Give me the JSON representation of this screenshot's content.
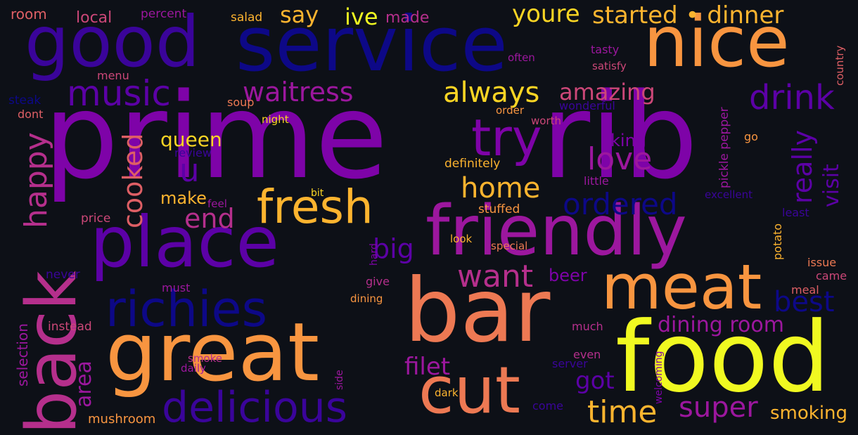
{
  "palette": [
    "#0d0887",
    "#3a049a",
    "#5c01a6",
    "#7e03a8",
    "#9c179e",
    "#b52f8c",
    "#cc4778",
    "#de5f65",
    "#ed7953",
    "#f89540",
    "#fdb42f",
    "#fbd524",
    "#f0f921"
  ],
  "background": "#0d1017",
  "words": [
    {
      "text": "prime"
    },
    {
      "text": "rib"
    },
    {
      "text": "food"
    },
    {
      "text": "bar"
    },
    {
      "text": "service"
    },
    {
      "text": "good"
    },
    {
      "text": "nice"
    },
    {
      "text": "great"
    },
    {
      "text": "place"
    },
    {
      "text": "friendly"
    },
    {
      "text": "back"
    },
    {
      "text": "meat"
    },
    {
      "text": "cut"
    },
    {
      "text": "richies"
    },
    {
      "text": "delicious"
    },
    {
      "text": "fresh"
    },
    {
      "text": "try"
    },
    {
      "text": "music"
    },
    {
      "text": "waitress"
    },
    {
      "text": "always"
    },
    {
      "text": "drink"
    },
    {
      "text": "u"
    },
    {
      "text": "want"
    },
    {
      "text": "happy"
    },
    {
      "text": "cooked"
    },
    {
      "text": "home"
    },
    {
      "text": "ordered"
    },
    {
      "text": "love"
    },
    {
      "text": "super"
    },
    {
      "text": "time"
    },
    {
      "text": "filet"
    },
    {
      "text": "big"
    },
    {
      "text": "end"
    },
    {
      "text": "best"
    },
    {
      "text": "dining room"
    },
    {
      "text": "amazing"
    },
    {
      "text": "started • dinner"
    },
    {
      "text": "youre"
    },
    {
      "text": "ive"
    },
    {
      "text": "say"
    },
    {
      "text": "really"
    },
    {
      "text": "visit"
    },
    {
      "text": "got"
    },
    {
      "text": "back"
    },
    {
      "text": "area"
    },
    {
      "text": "selection"
    },
    {
      "text": "queen"
    },
    {
      "text": "king"
    },
    {
      "text": "make"
    },
    {
      "text": "beer"
    },
    {
      "text": "smoking"
    },
    {
      "text": "mushroom"
    },
    {
      "text": "room"
    },
    {
      "text": "local"
    },
    {
      "text": "percent"
    },
    {
      "text": "salad"
    },
    {
      "text": "made"
    },
    {
      "text": "tasty"
    },
    {
      "text": "often"
    },
    {
      "text": "satisfy"
    },
    {
      "text": "country"
    },
    {
      "text": "menu"
    },
    {
      "text": "steak"
    },
    {
      "text": "dont"
    },
    {
      "text": "soup"
    },
    {
      "text": "order"
    },
    {
      "text": "wonderful"
    },
    {
      "text": "night"
    },
    {
      "text": "worth"
    },
    {
      "text": "review"
    },
    {
      "text": "definitely"
    },
    {
      "text": "go"
    },
    {
      "text": "pickle pepper"
    },
    {
      "text": "little"
    },
    {
      "text": "excellent"
    },
    {
      "text": "bit"
    },
    {
      "text": "feel"
    },
    {
      "text": "stuffed"
    },
    {
      "text": "price"
    },
    {
      "text": "least"
    },
    {
      "text": "look"
    },
    {
      "text": "special"
    },
    {
      "text": "hard"
    },
    {
      "text": "potato"
    },
    {
      "text": "issue"
    },
    {
      "text": "never"
    },
    {
      "text": "must"
    },
    {
      "text": "give"
    },
    {
      "text": "came"
    },
    {
      "text": "meal"
    },
    {
      "text": "dining"
    },
    {
      "text": "instead"
    },
    {
      "text": "much"
    },
    {
      "text": "even"
    },
    {
      "text": "server"
    },
    {
      "text": "smoke"
    },
    {
      "text": "daily"
    },
    {
      "text": "side"
    },
    {
      "text": "welcoming"
    },
    {
      "text": "dark"
    },
    {
      "text": "come"
    }
  ]
}
